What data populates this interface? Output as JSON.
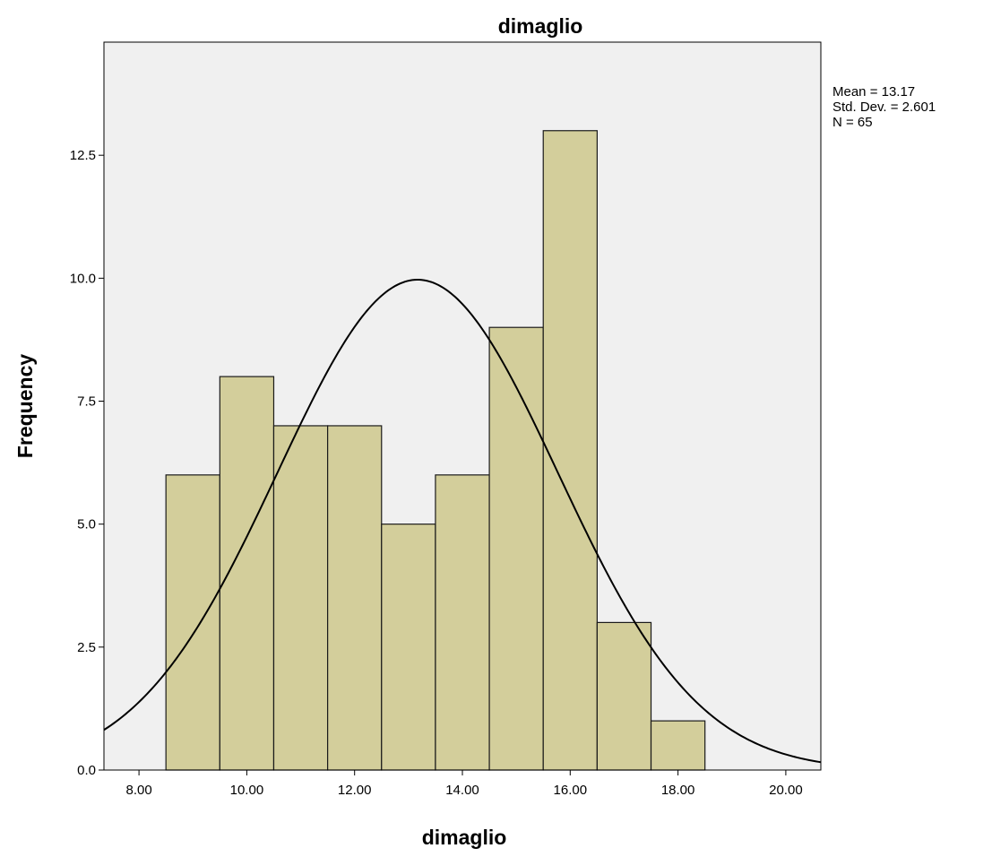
{
  "chart_data": {
    "type": "bar",
    "title": "dimaglio",
    "xlabel": "dimaglio",
    "ylabel": "Frequency",
    "bins": [
      {
        "from": 8.5,
        "to": 9.5,
        "count": 6
      },
      {
        "from": 9.5,
        "to": 10.5,
        "count": 8
      },
      {
        "from": 10.5,
        "to": 11.5,
        "count": 7
      },
      {
        "from": 11.5,
        "to": 12.5,
        "count": 7
      },
      {
        "from": 12.5,
        "to": 13.5,
        "count": 5
      },
      {
        "from": 13.5,
        "to": 14.5,
        "count": 6
      },
      {
        "from": 14.5,
        "to": 15.5,
        "count": 9
      },
      {
        "from": 15.5,
        "to": 16.5,
        "count": 13
      },
      {
        "from": 16.5,
        "to": 17.5,
        "count": 3
      },
      {
        "from": 17.5,
        "to": 18.5,
        "count": 1
      }
    ],
    "xlim": [
      7.35,
      20.65
    ],
    "ylim": [
      0,
      14.8
    ],
    "x_ticks": [
      8,
      10,
      12,
      14,
      16,
      18,
      20
    ],
    "x_tick_labels": [
      "8.00",
      "10.00",
      "12.00",
      "14.00",
      "16.00",
      "18.00",
      "20.00"
    ],
    "y_ticks": [
      0,
      2.5,
      5,
      7.5,
      10,
      12.5
    ],
    "y_tick_labels": [
      "0.0",
      "2.5",
      "5.0",
      "7.5",
      "10.0",
      "12.5"
    ],
    "normal_curve": {
      "mean": 13.17,
      "std_dev": 2.601,
      "n": 65,
      "bin_width": 1
    },
    "stats": [
      "Mean = 13.17",
      "Std. Dev. = 2.601",
      "N = 65"
    ],
    "grid": false,
    "legend": "none",
    "colors": {
      "bar_fill": "#d3ce9b",
      "bar_stroke": "#1a1a1a",
      "plot_bg": "#f0f0f0",
      "curve": "#000000"
    }
  }
}
